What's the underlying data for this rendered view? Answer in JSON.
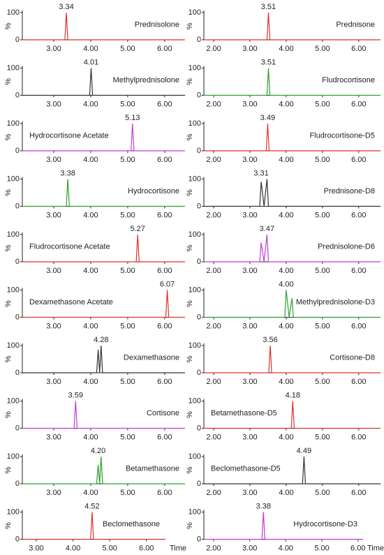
{
  "chart_data": [
    {
      "type": "line",
      "title": "Prednisolone",
      "color": "#e0302a",
      "x": [
        2.15,
        3.3,
        3.34,
        3.38,
        6.55
      ],
      "values": [
        0,
        0,
        100,
        0,
        0
      ],
      "annotations": [
        {
          "value": 3.34,
          "label": "3.34"
        }
      ],
      "xlim": [
        2.15,
        6.55
      ],
      "ylim": [
        0,
        100
      ],
      "xticks": [
        {
          "value": 3,
          "label": "3.00"
        },
        {
          "value": 4,
          "label": "4.00"
        },
        {
          "value": 5,
          "label": "5.00"
        },
        {
          "value": 6,
          "label": "6.00"
        }
      ],
      "yticks": [
        0,
        100
      ],
      "ylabel": "%"
    },
    {
      "type": "line",
      "title": "Methylprednisolone",
      "color": "#333333",
      "x": [
        2.15,
        3.97,
        4.01,
        4.05,
        6.55
      ],
      "values": [
        0,
        0,
        100,
        0,
        0
      ],
      "annotations": [
        {
          "value": 4.01,
          "label": "4.01"
        }
      ],
      "xlim": [
        2.15,
        6.55
      ],
      "ylim": [
        0,
        100
      ],
      "xticks": [
        {
          "value": 3,
          "label": "3.00"
        },
        {
          "value": 4,
          "label": "4.00"
        },
        {
          "value": 5,
          "label": "5.00"
        },
        {
          "value": 6,
          "label": "6.00"
        }
      ],
      "yticks": [
        0,
        100
      ],
      "ylabel": "%"
    },
    {
      "type": "line",
      "title": "Hydrocortisone Acetate",
      "color": "#c03cd0",
      "x": [
        2.15,
        5.09,
        5.13,
        5.17,
        6.55
      ],
      "values": [
        0,
        0,
        100,
        0,
        0
      ],
      "annotations": [
        {
          "value": 5.13,
          "label": "5.13"
        }
      ],
      "xlim": [
        2.15,
        6.55
      ],
      "ylim": [
        0,
        100
      ],
      "xticks": [
        {
          "value": 3,
          "label": "3.00"
        },
        {
          "value": 4,
          "label": "4.00"
        },
        {
          "value": 5,
          "label": "5.00"
        },
        {
          "value": 6,
          "label": "6.00"
        }
      ],
      "yticks": [
        0,
        100
      ],
      "ylabel": "%"
    },
    {
      "type": "line",
      "title": "Hydrocortisone",
      "color": "#2ca02c",
      "x": [
        2.15,
        3.34,
        3.38,
        3.42,
        6.55
      ],
      "values": [
        0,
        0,
        100,
        0,
        0
      ],
      "annotations": [
        {
          "value": 3.38,
          "label": "3.38"
        }
      ],
      "xlim": [
        2.15,
        6.55
      ],
      "ylim": [
        0,
        100
      ],
      "xticks": [
        {
          "value": 3,
          "label": "3.00"
        },
        {
          "value": 4,
          "label": "4.00"
        },
        {
          "value": 5,
          "label": "5.00"
        },
        {
          "value": 6,
          "label": "6.00"
        }
      ],
      "yticks": [
        0,
        100
      ],
      "ylabel": "%"
    },
    {
      "type": "line",
      "title": "Fludrocortisone Acetate",
      "color": "#e0302a",
      "x": [
        2.15,
        5.23,
        5.27,
        5.31,
        6.55
      ],
      "values": [
        0,
        0,
        100,
        0,
        0
      ],
      "annotations": [
        {
          "value": 5.27,
          "label": "5.27"
        }
      ],
      "xlim": [
        2.15,
        6.55
      ],
      "ylim": [
        0,
        100
      ],
      "xticks": [
        {
          "value": 3,
          "label": "3.00"
        },
        {
          "value": 4,
          "label": "4.00"
        },
        {
          "value": 5,
          "label": "5.00"
        },
        {
          "value": 6,
          "label": "6.00"
        }
      ],
      "yticks": [
        0,
        100
      ],
      "ylabel": "%"
    },
    {
      "type": "line",
      "title": "Dexamethasone Acetate",
      "color": "#e0302a",
      "x": [
        2.15,
        6.03,
        6.07,
        6.11,
        6.55
      ],
      "values": [
        0,
        0,
        100,
        0,
        0
      ],
      "annotations": [
        {
          "value": 6.07,
          "label": "6.07"
        }
      ],
      "xlim": [
        2.15,
        6.55
      ],
      "ylim": [
        0,
        100
      ],
      "xticks": [
        {
          "value": 3,
          "label": "3.00"
        },
        {
          "value": 4,
          "label": "4.00"
        },
        {
          "value": 5,
          "label": "5.00"
        },
        {
          "value": 6,
          "label": "6.00"
        }
      ],
      "yticks": [
        0,
        100
      ],
      "ylabel": "%"
    },
    {
      "type": "line",
      "title": "Dexamethasone",
      "color": "#333333",
      "x": [
        2.15,
        4.16,
        4.2,
        4.24,
        4.28,
        4.32,
        6.55
      ],
      "values": [
        0,
        0,
        85,
        0,
        100,
        0,
        0
      ],
      "annotations": [
        {
          "value": 4.28,
          "label": "4.28"
        }
      ],
      "xlim": [
        2.15,
        6.55
      ],
      "ylim": [
        0,
        100
      ],
      "xticks": [
        {
          "value": 3,
          "label": "3.00"
        },
        {
          "value": 4,
          "label": "4.00"
        },
        {
          "value": 5,
          "label": "5.00"
        },
        {
          "value": 6,
          "label": "6.00"
        }
      ],
      "yticks": [
        0,
        100
      ],
      "ylabel": "%"
    },
    {
      "type": "line",
      "title": "Cortisone",
      "color": "#c03cd0",
      "x": [
        2.15,
        3.55,
        3.59,
        3.63,
        6.55
      ],
      "values": [
        0,
        0,
        100,
        0,
        0
      ],
      "annotations": [
        {
          "value": 3.59,
          "label": "3.59"
        }
      ],
      "xlim": [
        2.15,
        6.55
      ],
      "ylim": [
        0,
        100
      ],
      "xticks": [
        {
          "value": 3,
          "label": "3.00"
        },
        {
          "value": 4,
          "label": "4.00"
        },
        {
          "value": 5,
          "label": "5.00"
        },
        {
          "value": 6,
          "label": "6.00"
        }
      ],
      "yticks": [
        0,
        100
      ],
      "ylabel": "%"
    },
    {
      "type": "line",
      "title": "Betamethasone",
      "color": "#2ca02c",
      "x": [
        2.15,
        4.16,
        4.2,
        4.24,
        4.28,
        4.32,
        6.55
      ],
      "values": [
        0,
        0,
        70,
        0,
        100,
        0,
        0
      ],
      "annotations": [
        {
          "value": 4.2,
          "label": "4.20"
        }
      ],
      "xlim": [
        2.15,
        6.55
      ],
      "ylim": [
        0,
        100
      ],
      "xticks": [
        {
          "value": 3,
          "label": "3.00"
        },
        {
          "value": 4,
          "label": "4.00"
        },
        {
          "value": 5,
          "label": "5.00"
        },
        {
          "value": 6,
          "label": "6.00"
        }
      ],
      "yticks": [
        0,
        100
      ],
      "ylabel": "%"
    },
    {
      "type": "line",
      "title": "Beclomethasone",
      "color": "#e0302a",
      "x": [
        2.62,
        4.48,
        4.52,
        4.56,
        6.52
      ],
      "values": [
        0,
        0,
        100,
        0,
        0
      ],
      "annotations": [
        {
          "value": 4.52,
          "label": "4.52"
        }
      ],
      "xlim": [
        2.62,
        6.52
      ],
      "ylim": [
        0,
        100
      ],
      "xticks": [
        {
          "value": 3,
          "label": "3.00"
        },
        {
          "value": 4,
          "label": "4.00"
        },
        {
          "value": 5,
          "label": "5.00"
        },
        {
          "value": 6,
          "label": "6.00"
        }
      ],
      "yticks": [
        0,
        100
      ],
      "ylabel": "%",
      "xlabel": "Time"
    },
    {
      "type": "line",
      "title": "Prednisone",
      "color": "#e0302a",
      "x": [
        1.73,
        3.47,
        3.51,
        3.55,
        6.6
      ],
      "values": [
        0,
        0,
        100,
        0,
        0
      ],
      "annotations": [
        {
          "value": 3.51,
          "label": "3.51"
        }
      ],
      "xlim": [
        1.73,
        6.6
      ],
      "ylim": [
        0,
        100
      ],
      "xticks": [
        {
          "value": 2,
          "label": "2.00"
        },
        {
          "value": 3,
          "label": "3.00"
        },
        {
          "value": 4,
          "label": "4.00"
        },
        {
          "value": 5,
          "label": "5.00"
        },
        {
          "value": 6,
          "label": "6.00"
        }
      ],
      "yticks": [
        0,
        100
      ],
      "ylabel": "%"
    },
    {
      "type": "line",
      "title": "Fludrocortisone",
      "color": "#2ca02c",
      "x": [
        1.73,
        3.47,
        3.51,
        3.55,
        6.6
      ],
      "values": [
        0,
        0,
        100,
        0,
        0
      ],
      "annotations": [
        {
          "value": 3.51,
          "label": "3.51"
        }
      ],
      "xlim": [
        1.73,
        6.6
      ],
      "ylim": [
        0,
        100
      ],
      "xticks": [
        {
          "value": 2,
          "label": "2.00"
        },
        {
          "value": 3,
          "label": "3.00"
        },
        {
          "value": 4,
          "label": "4.00"
        },
        {
          "value": 5,
          "label": "5.00"
        },
        {
          "value": 6,
          "label": "6.00"
        }
      ],
      "yticks": [
        0,
        100
      ],
      "ylabel": "%"
    },
    {
      "type": "line",
      "title": "Fludrocortisone-D5",
      "color": "#e0302a",
      "x": [
        1.73,
        3.45,
        3.49,
        3.53,
        6.6
      ],
      "values": [
        0,
        0,
        100,
        0,
        0
      ],
      "annotations": [
        {
          "value": 3.49,
          "label": "3.49"
        }
      ],
      "xlim": [
        1.73,
        6.6
      ],
      "ylim": [
        0,
        100
      ],
      "xticks": [
        {
          "value": 2,
          "label": "2.00"
        },
        {
          "value": 3,
          "label": "3.00"
        },
        {
          "value": 4,
          "label": "4.00"
        },
        {
          "value": 5,
          "label": "5.00"
        },
        {
          "value": 6,
          "label": "6.00"
        }
      ],
      "yticks": [
        0,
        100
      ],
      "ylabel": "%"
    },
    {
      "type": "line",
      "title": "Prednisone-D8",
      "color": "#333333",
      "x": [
        1.73,
        3.27,
        3.31,
        3.39,
        3.47,
        3.51,
        6.6
      ],
      "values": [
        0,
        0,
        90,
        0,
        100,
        0,
        0
      ],
      "annotations": [
        {
          "value": 3.31,
          "label": "3.31"
        }
      ],
      "xlim": [
        1.73,
        6.6
      ],
      "ylim": [
        0,
        100
      ],
      "xticks": [
        {
          "value": 2,
          "label": "2.00"
        },
        {
          "value": 3,
          "label": "3.00"
        },
        {
          "value": 4,
          "label": "4.00"
        },
        {
          "value": 5,
          "label": "5.00"
        },
        {
          "value": 6,
          "label": "6.00"
        }
      ],
      "yticks": [
        0,
        100
      ],
      "ylabel": "%"
    },
    {
      "type": "line",
      "title": "Prednisolone-D6",
      "color": "#c03cd0",
      "x": [
        1.73,
        3.27,
        3.31,
        3.39,
        3.47,
        3.51,
        6.6
      ],
      "values": [
        0,
        0,
        70,
        0,
        100,
        0,
        0
      ],
      "annotations": [
        {
          "value": 3.47,
          "label": "3.47"
        }
      ],
      "xlim": [
        1.73,
        6.6
      ],
      "ylim": [
        0,
        100
      ],
      "xticks": [
        {
          "value": 2,
          "label": "2.00"
        },
        {
          "value": 3,
          "label": "3.00"
        },
        {
          "value": 4,
          "label": "4.00"
        },
        {
          "value": 5,
          "label": "5.00"
        },
        {
          "value": 6,
          "label": "6.00"
        }
      ],
      "yticks": [
        0,
        100
      ],
      "ylabel": "%"
    },
    {
      "type": "line",
      "title": "Methylprednisolone-D3",
      "color": "#2ca02c",
      "x": [
        1.73,
        3.96,
        4.0,
        4.08,
        4.16,
        4.2,
        6.6
      ],
      "values": [
        0,
        0,
        100,
        0,
        70,
        0,
        0
      ],
      "annotations": [
        {
          "value": 4.0,
          "label": "4.00"
        }
      ],
      "xlim": [
        1.73,
        6.6
      ],
      "ylim": [
        0,
        100
      ],
      "xticks": [
        {
          "value": 2,
          "label": "2.00"
        },
        {
          "value": 3,
          "label": "3.00"
        },
        {
          "value": 4,
          "label": "4.00"
        },
        {
          "value": 5,
          "label": "5.00"
        },
        {
          "value": 6,
          "label": "6.00"
        }
      ],
      "yticks": [
        0,
        100
      ],
      "ylabel": "%"
    },
    {
      "type": "line",
      "title": "Cortisone-D8",
      "color": "#e0302a",
      "x": [
        1.73,
        3.52,
        3.56,
        3.6,
        6.6
      ],
      "values": [
        0,
        0,
        100,
        0,
        0
      ],
      "annotations": [
        {
          "value": 3.56,
          "label": "3.56"
        }
      ],
      "xlim": [
        1.73,
        6.6
      ],
      "ylim": [
        0,
        100
      ],
      "xticks": [
        {
          "value": 2,
          "label": "2.00"
        },
        {
          "value": 3,
          "label": "3.00"
        },
        {
          "value": 4,
          "label": "4.00"
        },
        {
          "value": 5,
          "label": "5.00"
        },
        {
          "value": 6,
          "label": "6.00"
        }
      ],
      "yticks": [
        0,
        100
      ],
      "ylabel": "%"
    },
    {
      "type": "line",
      "title": "Betamethasone-D5",
      "color": "#e0302a",
      "x": [
        1.73,
        4.14,
        4.18,
        4.22,
        6.6
      ],
      "values": [
        0,
        0,
        100,
        0,
        0
      ],
      "annotations": [
        {
          "value": 4.18,
          "label": "4.18"
        }
      ],
      "xlim": [
        1.73,
        6.6
      ],
      "ylim": [
        0,
        100
      ],
      "xticks": [
        {
          "value": 2,
          "label": "2.00"
        },
        {
          "value": 3,
          "label": "3.00"
        },
        {
          "value": 4,
          "label": "4.00"
        },
        {
          "value": 5,
          "label": "5.00"
        },
        {
          "value": 6,
          "label": "6.00"
        }
      ],
      "yticks": [
        0,
        100
      ],
      "ylabel": "%"
    },
    {
      "type": "line",
      "title": "Beclomethasone-D5",
      "color": "#333333",
      "x": [
        1.73,
        4.45,
        4.49,
        4.53,
        6.6
      ],
      "values": [
        0,
        0,
        100,
        0,
        0
      ],
      "annotations": [
        {
          "value": 4.49,
          "label": "4.49"
        }
      ],
      "xlim": [
        1.73,
        6.6
      ],
      "ylim": [
        0,
        100
      ],
      "xticks": [
        {
          "value": 2,
          "label": "2.00"
        },
        {
          "value": 3,
          "label": "3.00"
        },
        {
          "value": 4,
          "label": "4.00"
        },
        {
          "value": 5,
          "label": "5.00"
        },
        {
          "value": 6,
          "label": "6.00"
        }
      ],
      "yticks": [
        0,
        100
      ],
      "ylabel": "%"
    },
    {
      "type": "line",
      "title": "Hydrocortisone-D3",
      "color": "#c03cd0",
      "x": [
        1.73,
        3.34,
        3.38,
        3.42,
        6.14
      ],
      "values": [
        0,
        0,
        100,
        0,
        0
      ],
      "annotations": [
        {
          "value": 3.38,
          "label": "3.38"
        }
      ],
      "xlim": [
        1.73,
        6.14
      ],
      "ylim": [
        0,
        100
      ],
      "xticks": [
        {
          "value": 2,
          "label": "2.00"
        },
        {
          "value": 3,
          "label": "3.00"
        },
        {
          "value": 4,
          "label": "4.00"
        },
        {
          "value": 5,
          "label": "5.00"
        },
        {
          "value": 6,
          "label": "6.00"
        }
      ],
      "yticks": [
        0,
        100
      ],
      "ylabel": "%",
      "xlabel": "Time"
    }
  ]
}
